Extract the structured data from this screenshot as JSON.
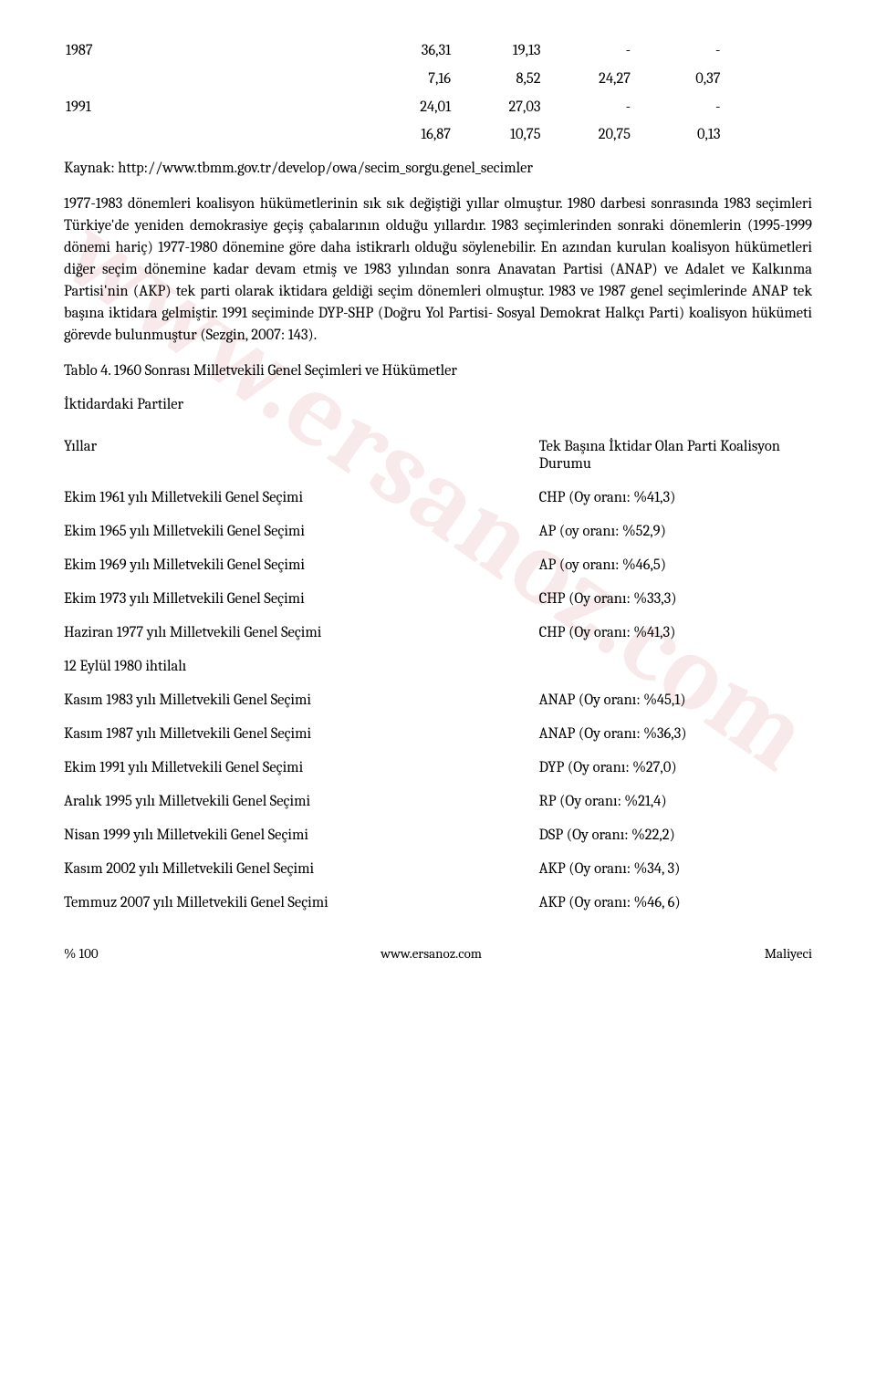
{
  "watermark": "www.ersanoz.com",
  "top_rows": [
    {
      "cells": [
        "1987",
        "",
        "36,31",
        "19,13",
        "-",
        "-",
        ""
      ]
    },
    {
      "cells": [
        "",
        "",
        "7,16",
        "8,52",
        "24,27",
        "0,37",
        ""
      ]
    },
    {
      "cells": [
        "1991",
        "",
        "24,01",
        "27,03",
        "-",
        "-",
        ""
      ]
    },
    {
      "cells": [
        "",
        "",
        "16,87",
        "10,75",
        "20,75",
        "0,13",
        ""
      ]
    }
  ],
  "source": "Kaynak: http://www.tbmm.gov.tr/develop/owa/secim_sorgu.genel_secimler",
  "body": "1977-1983 dönemleri koalisyon hükümetlerinin sık sık değiştiği yıllar olmuştur. 1980 darbesi sonrasında 1983 seçimleri Türkiye'de yeniden demokrasiye geçiş çabalarının olduğu yıllardır. 1983 seçimlerinden sonraki dönemlerin (1995-1999 dönemi hariç) 1977-1980 dönemine göre daha istikrarlı olduğu söylenebilir. En azından kurulan koalisyon hükümetleri diğer seçim dönemine kadar devam etmiş ve 1983 yılından sonra Anavatan Partisi (ANAP) ve Adalet ve Kalkınma Partisi'nin (AKP) tek parti olarak iktidara geldiği seçim dönemleri olmuştur. 1983 ve 1987 genel seçimlerinde ANAP tek başına iktidara gelmiştir. 1991 seçiminde DYP-SHP (Doğru Yol Partisi- Sosyal Demokrat Halkçı Parti) koalisyon hükümeti görevde bulunmuştur (Sezgin, 2007: 143).",
  "table4_title": "Tablo 4. 1960 Sonrası Milletvekili Genel Seçimleri ve Hükümetler",
  "table4_subtitle": "İktidardaki Partiler",
  "col_left_header": "Yıllar",
  "col_right_header": "Tek Başına İktidar Olan Parti Koalisyon Durumu",
  "elections": [
    {
      "label": "Ekim 1961 yılı Milletvekili Genel Seçimi",
      "result": "CHP (Oy oranı: %41,3)"
    },
    {
      "label": "Ekim 1965 yılı Milletvekili Genel Seçimi",
      "result": "AP (oy oranı: %52,9)"
    },
    {
      "label": "Ekim 1969 yılı Milletvekili Genel Seçimi",
      "result": "AP (oy oranı: %46,5)"
    },
    {
      "label": "Ekim 1973 yılı Milletvekili Genel Seçimi",
      "result": "CHP (Oy oranı: %33,3)"
    },
    {
      "label": "Haziran 1977 yılı Milletvekili Genel Seçimi",
      "result": "CHP (Oy oranı: %41,3)"
    },
    {
      "label": "12 Eylül 1980 ihtilalı",
      "result": ""
    },
    {
      "label": "Kasım 1983 yılı Milletvekili Genel Seçimi",
      "result": "ANAP (Oy oranı: %45,1)"
    },
    {
      "label": "Kasım 1987 yılı Milletvekili Genel Seçimi",
      "result": "ANAP (Oy oranı: %36,3)"
    },
    {
      "label": "Ekim 1991 yılı Milletvekili Genel Seçimi",
      "result": "DYP (Oy oranı: %27,0)"
    },
    {
      "label": "Aralık 1995 yılı Milletvekili Genel Seçimi",
      "result": "RP (Oy oranı: %21,4)"
    },
    {
      "label": "Nisan 1999 yılı Milletvekili Genel Seçimi",
      "result": "DSP (Oy oranı: %22,2)"
    },
    {
      "label": "Kasım 2002 yılı Milletvekili Genel Seçimi",
      "result": "AKP (Oy oranı: %34, 3)"
    },
    {
      "label": "Temmuz 2007 yılı Milletvekili Genel Seçimi",
      "result": "AKP (Oy oranı: %46, 6)"
    }
  ],
  "footer": {
    "left": "% 100",
    "center": "www.ersanoz.com",
    "right": "Maliyeci"
  },
  "colors": {
    "text": "#000000",
    "bg": "#ffffff",
    "watermark": "rgba(200,80,80,0.12)"
  }
}
